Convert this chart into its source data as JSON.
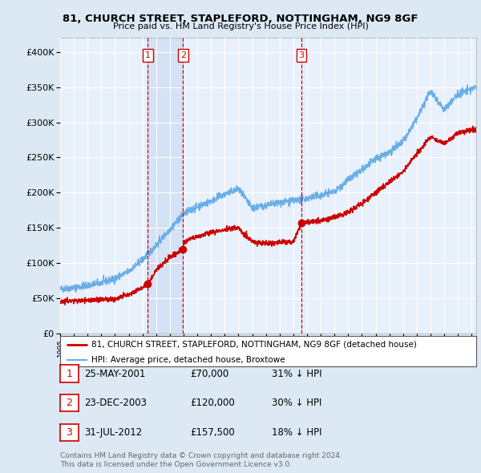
{
  "title1": "81, CHURCH STREET, STAPLEFORD, NOTTINGHAM, NG9 8GF",
  "title2": "Price paid vs. HM Land Registry's House Price Index (HPI)",
  "ylim": [
    0,
    420000
  ],
  "xlim_start": 1995.0,
  "xlim_end": 2025.33,
  "bg_color": "#dce9f5",
  "plot_bg": "#e8f0fb",
  "grid_color": "#ffffff",
  "hpi_color": "#6aaee8",
  "price_color": "#cc0000",
  "sale_line_color": "#cc0000",
  "sale_box_color": "#cc0000",
  "shade_color": "#c5d9f0",
  "transactions": [
    {
      "date_num": 2001.39,
      "price": 70000,
      "label": "1",
      "date_str": "25-MAY-2001",
      "pct": "31%"
    },
    {
      "date_num": 2003.97,
      "price": 120000,
      "label": "2",
      "date_str": "23-DEC-2003",
      "pct": "30%"
    },
    {
      "date_num": 2012.58,
      "price": 157500,
      "label": "3",
      "date_str": "31-JUL-2012",
      "pct": "18%"
    }
  ],
  "footer1": "Contains HM Land Registry data © Crown copyright and database right 2024.",
  "footer2": "This data is licensed under the Open Government Licence v3.0.",
  "legend1": "81, CHURCH STREET, STAPLEFORD, NOTTINGHAM, NG9 8GF (detached house)",
  "legend2": "HPI: Average price, detached house, Broxtowe",
  "table_rows": [
    {
      "num": "1",
      "date": "25-MAY-2001",
      "price": "£70,000",
      "pct": "31% ↓ HPI"
    },
    {
      "num": "2",
      "date": "23-DEC-2003",
      "price": "£120,000",
      "pct": "30% ↓ HPI"
    },
    {
      "num": "3",
      "date": "31-JUL-2012",
      "price": "£157,500",
      "pct": "18% ↓ HPI"
    }
  ]
}
